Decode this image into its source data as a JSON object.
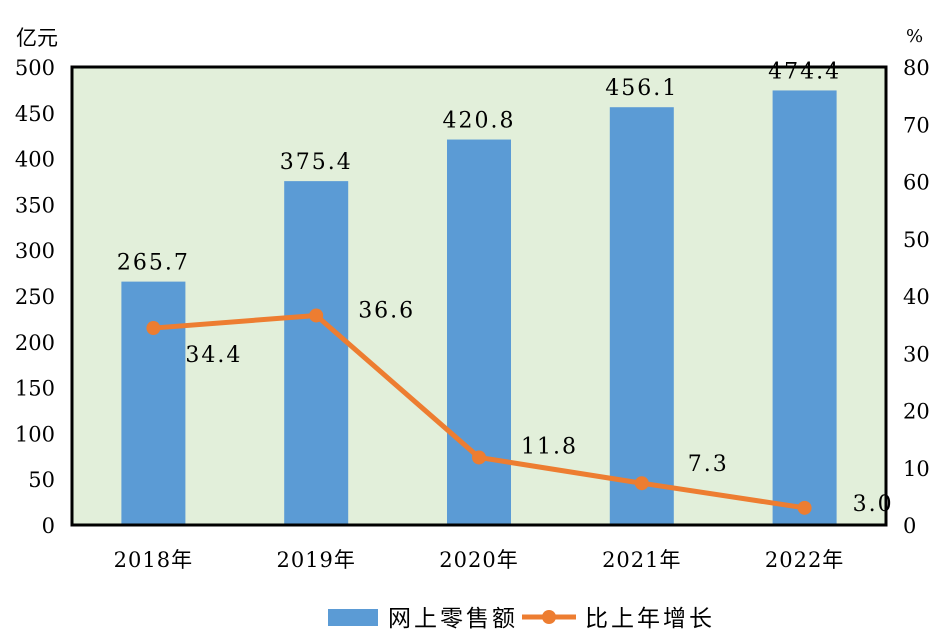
{
  "chart_data": {
    "type": "bar+line",
    "title": "",
    "categories": [
      "2018年",
      "2019年",
      "2020年",
      "2021年",
      "2022年"
    ],
    "series": [
      {
        "name": "网上零售额",
        "type": "bar",
        "axis": "left",
        "color": "#5b9bd5",
        "values": [
          265.7,
          375.4,
          420.8,
          456.1,
          474.4
        ],
        "labels": [
          "265.7",
          "375.4",
          "420.8",
          "456.1",
          "474.4"
        ]
      },
      {
        "name": "比上年增长",
        "type": "line",
        "axis": "right",
        "color": "#ed7d31",
        "values": [
          34.4,
          36.6,
          11.8,
          7.3,
          3.0
        ],
        "labels": [
          "34.4",
          "36.6",
          "11.8",
          "7.3",
          "3.0"
        ]
      }
    ],
    "left_axis": {
      "label": "亿元",
      "ylim": [
        0,
        500
      ],
      "ticks": [
        "0",
        "50",
        "100",
        "150",
        "200",
        "250",
        "300",
        "350",
        "400",
        "450",
        "500"
      ]
    },
    "right_axis": {
      "label": "%",
      "ylim": [
        0,
        80
      ],
      "ticks": [
        "0",
        "10",
        "20",
        "30",
        "40",
        "50",
        "60",
        "70",
        "80"
      ]
    },
    "xlabel": "",
    "grid": false,
    "plot_background": "#e2efda",
    "legend": {
      "position": "bottom",
      "entries": [
        "网上零售额",
        "比上年增长"
      ]
    }
  }
}
